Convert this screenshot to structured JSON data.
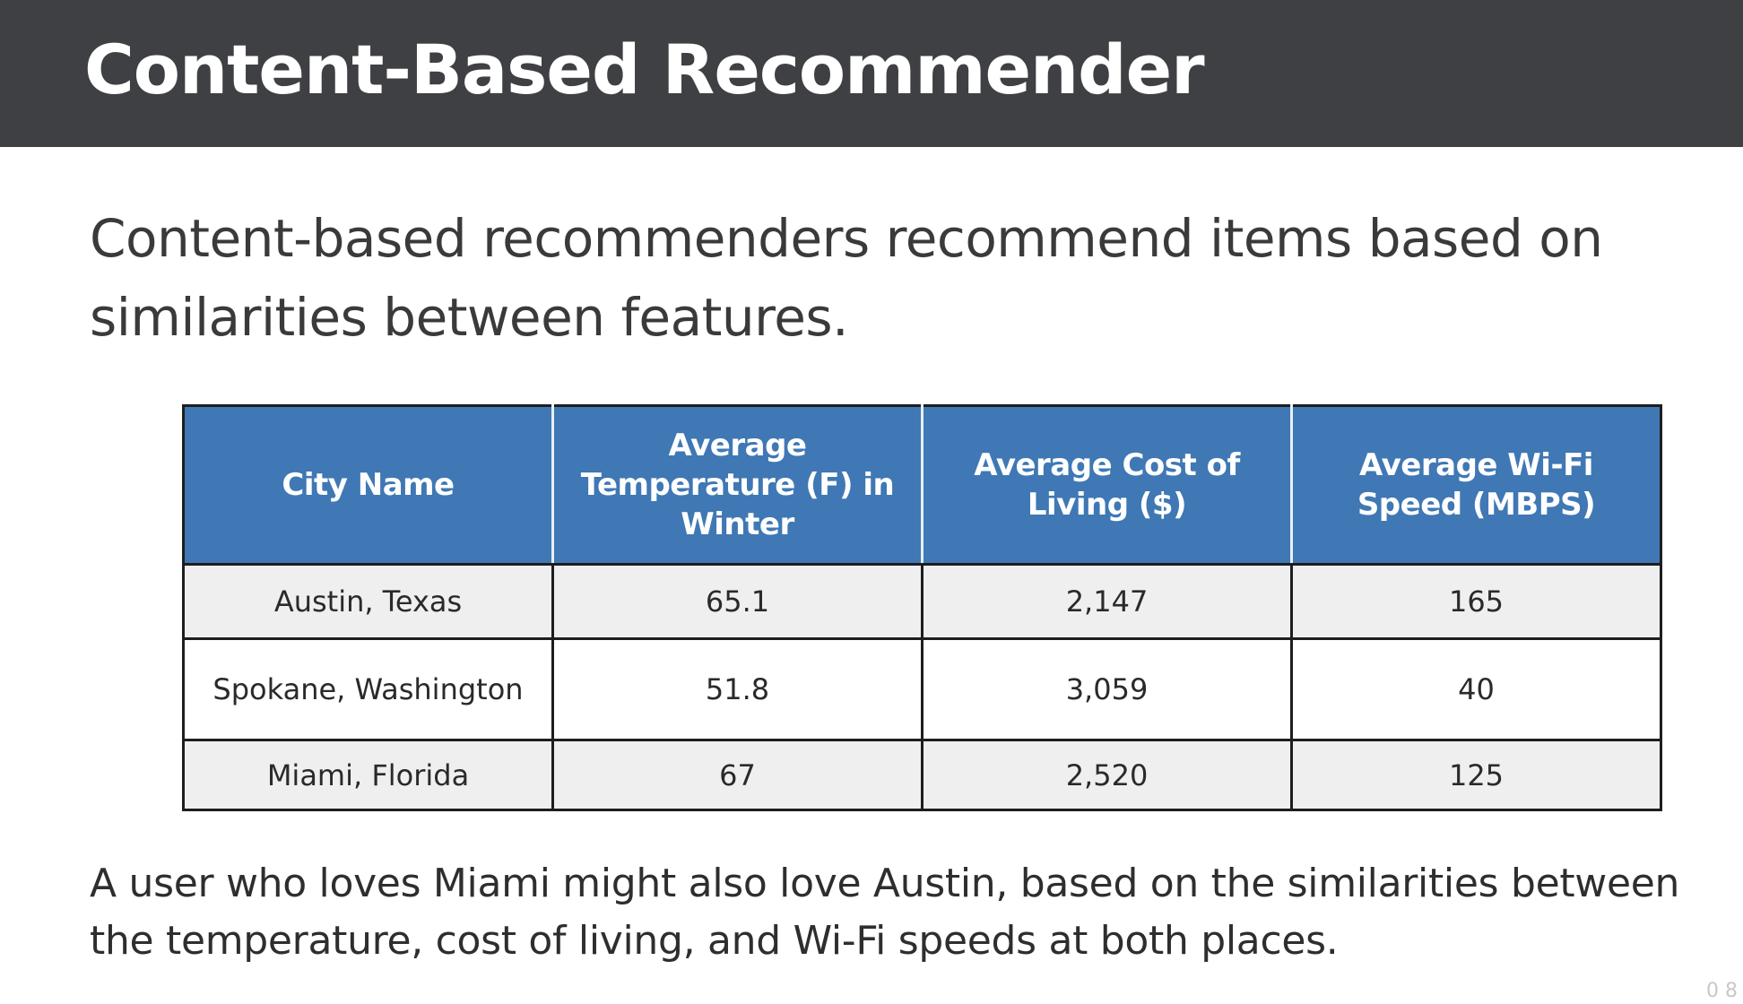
{
  "slide": {
    "title": "Content-Based Recommender",
    "intro": "Content-based recommenders recommend items based on similarities between features.",
    "conclusion": "A user who loves Miami might also love Austin, based on the similarities between the temperature, cost of living, and Wi-Fi speeds at both places.",
    "page_marker": "0 8"
  },
  "table": {
    "headers": [
      "City Name",
      "Average Temperature (F) in Winter",
      "Average Cost of Living ($)",
      "Average Wi-Fi Speed (MBPS)"
    ],
    "rows": [
      [
        "Austin, Texas",
        "65.1",
        "2,147",
        "165"
      ],
      [
        "Spokane, Washington",
        "51.8",
        "3,059",
        "40"
      ],
      [
        "Miami, Florida",
        "67",
        "2,520",
        "125"
      ]
    ]
  },
  "colors": {
    "title_bar": "#3f4043",
    "header_fill": "#3f78b4",
    "row_shade": "#efefef"
  }
}
